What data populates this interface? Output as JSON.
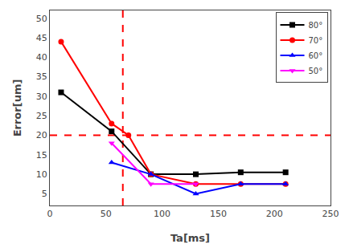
{
  "chart_data": {
    "type": "line",
    "xlabel": "Ta[ms]",
    "ylabel": "Error[um]",
    "series": [
      {
        "name": "80°",
        "color": "#000000",
        "marker": "square",
        "x": [
          10,
          55,
          90,
          130,
          170,
          210
        ],
        "values": [
          31,
          21,
          10,
          10,
          10.5,
          10.5
        ]
      },
      {
        "name": "70°",
        "color": "#ff0000",
        "marker": "circle",
        "x": [
          10,
          55,
          70,
          90,
          130,
          170,
          210
        ],
        "values": [
          44,
          23,
          20,
          10,
          7.5,
          7.5,
          7.5
        ]
      },
      {
        "name": "60°",
        "color": "#0000ff",
        "marker": "triangle-up",
        "x": [
          55,
          90,
          130,
          170,
          210
        ],
        "values": [
          13,
          10,
          5,
          7.5,
          7.5
        ]
      },
      {
        "name": "50°",
        "color": "#ff00ff",
        "marker": "triangle-down",
        "x": [
          55,
          90,
          130
        ],
        "values": [
          18,
          7.5,
          7.5
        ]
      }
    ],
    "hlines": [
      {
        "y": 20,
        "color": "#ff0000",
        "line_style": "dashed"
      }
    ],
    "vlines": [
      {
        "x": 65,
        "color": "#ff0000",
        "line_style": "dashed"
      }
    ],
    "xlim": [
      0,
      250
    ],
    "ylim": [
      2,
      52
    ],
    "xticks": [
      0,
      50,
      100,
      150,
      200,
      250
    ],
    "yticks": [
      5,
      10,
      15,
      20,
      25,
      30,
      35,
      40,
      45,
      50
    ],
    "legend": "upper right",
    "grid": false
  }
}
